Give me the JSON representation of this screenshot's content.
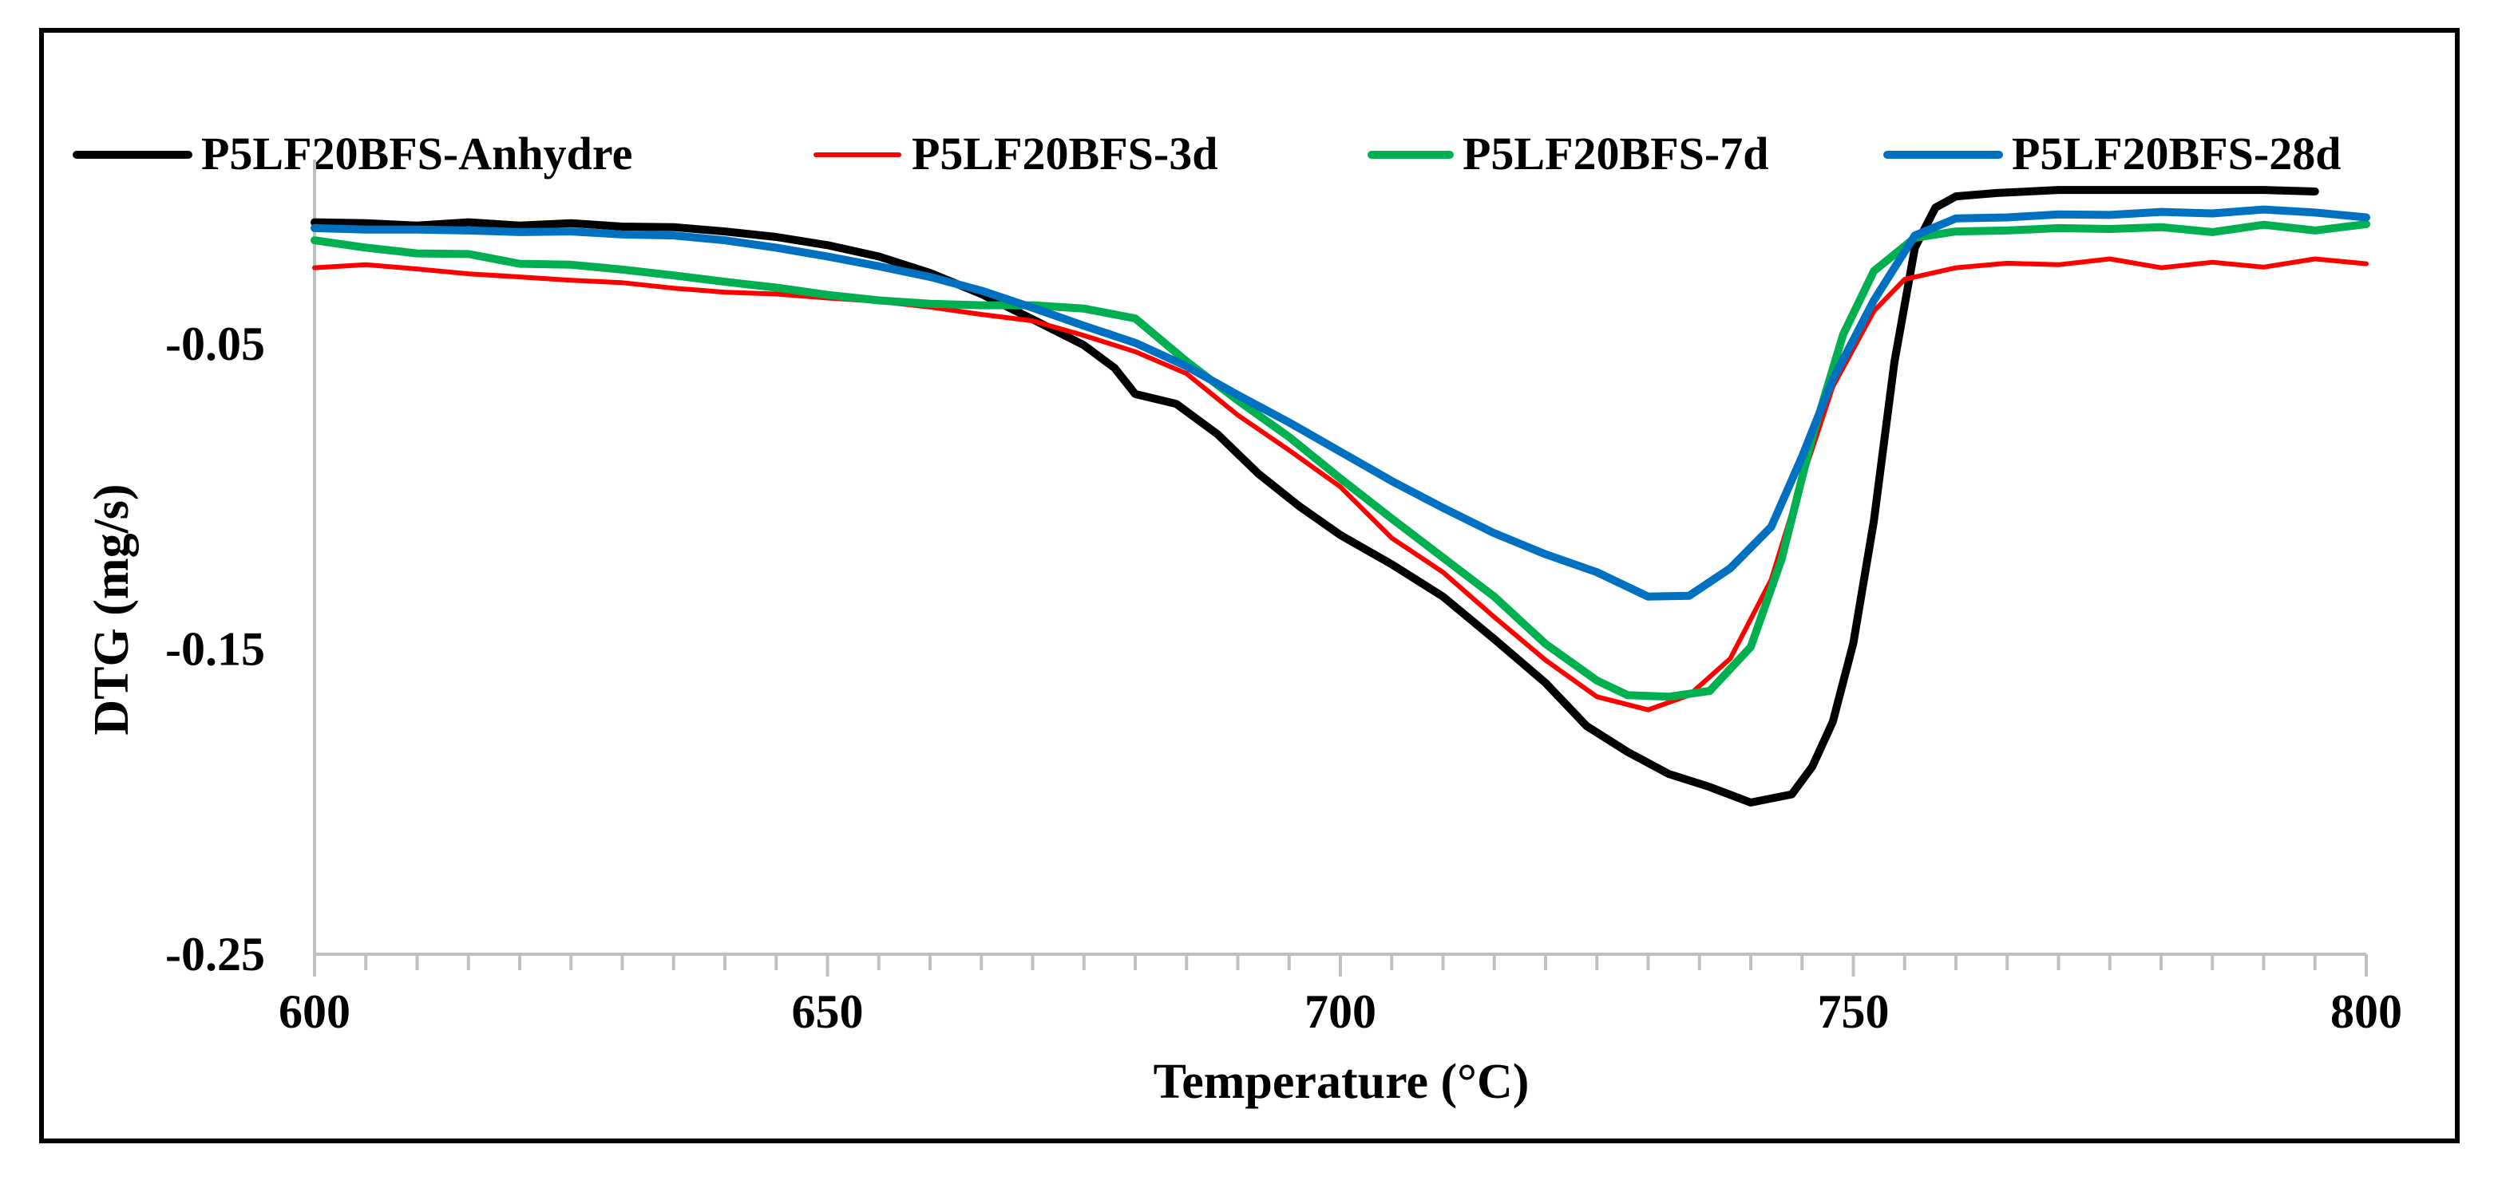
{
  "chart_data": {
    "type": "line",
    "title": "",
    "xlabel": "Temperature (°C)",
    "ylabel": "DTG (mg/s)",
    "xlim": [
      600,
      800
    ],
    "ylim": [
      -0.25,
      -0.0
    ],
    "x_ticks": [
      600,
      650,
      700,
      750,
      800
    ],
    "x_tick_labels": [
      "600",
      "650",
      "700",
      "750",
      "800"
    ],
    "y_ticks": [
      -0.05,
      -0.15,
      -0.25
    ],
    "y_tick_labels": [
      "-0.05",
      "-0.15",
      "-0.25"
    ],
    "grid": false,
    "legend_position": "top",
    "series": [
      {
        "name": "P5LF20BFS-Anhydre",
        "color": "#000000",
        "points": [
          [
            600,
            -0.0101
          ],
          [
            605,
            -0.0104
          ],
          [
            610,
            -0.0112
          ],
          [
            615,
            -0.0101
          ],
          [
            620,
            -0.0112
          ],
          [
            625,
            -0.0104
          ],
          [
            630,
            -0.0115
          ],
          [
            635,
            -0.0117
          ],
          [
            640,
            -0.0131
          ],
          [
            645,
            -0.0149
          ],
          [
            650,
            -0.0176
          ],
          [
            655,
            -0.0213
          ],
          [
            660,
            -0.0267
          ],
          [
            665,
            -0.0336
          ],
          [
            670,
            -0.0419
          ],
          [
            675,
            -0.0504
          ],
          [
            678,
            -0.0579
          ],
          [
            680,
            -0.0664
          ],
          [
            684,
            -0.0696
          ],
          [
            688,
            -0.0795
          ],
          [
            692,
            -0.0925
          ],
          [
            696,
            -0.1032
          ],
          [
            700,
            -0.1126
          ],
          [
            705,
            -0.1222
          ],
          [
            710,
            -0.1328
          ],
          [
            715,
            -0.1467
          ],
          [
            720,
            -0.1611
          ],
          [
            724,
            -0.1752
          ],
          [
            728,
            -0.1837
          ],
          [
            732,
            -0.1909
          ],
          [
            736,
            -0.1952
          ],
          [
            740,
            -0.2003
          ],
          [
            744,
            -0.1976
          ],
          [
            746,
            -0.1885
          ],
          [
            748,
            -0.1738
          ],
          [
            750,
            -0.148
          ],
          [
            752,
            -0.108
          ],
          [
            754,
            -0.056
          ],
          [
            756,
            -0.0184
          ],
          [
            758,
            -0.0053
          ],
          [
            760,
            -0.0016
          ],
          [
            764,
            -0.0005
          ],
          [
            770,
            0.0005
          ],
          [
            780,
            0.0005
          ],
          [
            790,
            0.0005
          ],
          [
            795,
            0.0
          ]
        ]
      },
      {
        "name": "P5LF20BFS-3d",
        "color": "#ff0000",
        "points": [
          [
            600,
            -0.025
          ],
          [
            605,
            -0.024
          ],
          [
            610,
            -0.0254
          ],
          [
            615,
            -0.027
          ],
          [
            620,
            -0.028
          ],
          [
            625,
            -0.0291
          ],
          [
            630,
            -0.0299
          ],
          [
            635,
            -0.0317
          ],
          [
            640,
            -0.033
          ],
          [
            645,
            -0.0336
          ],
          [
            650,
            -0.0349
          ],
          [
            655,
            -0.036
          ],
          [
            660,
            -0.0379
          ],
          [
            665,
            -0.0403
          ],
          [
            670,
            -0.0424
          ],
          [
            675,
            -0.0472
          ],
          [
            680,
            -0.0525
          ],
          [
            685,
            -0.0597
          ],
          [
            690,
            -0.0733
          ],
          [
            695,
            -0.0848
          ],
          [
            700,
            -0.0968
          ],
          [
            705,
            -0.1136
          ],
          [
            710,
            -0.1248
          ],
          [
            715,
            -0.1395
          ],
          [
            720,
            -0.1536
          ],
          [
            725,
            -0.1656
          ],
          [
            730,
            -0.1699
          ],
          [
            734,
            -0.1651
          ],
          [
            738,
            -0.1531
          ],
          [
            742,
            -0.1272
          ],
          [
            745,
            -0.0944
          ],
          [
            748,
            -0.064
          ],
          [
            752,
            -0.0392
          ],
          [
            755,
            -0.0288
          ],
          [
            760,
            -0.025
          ],
          [
            765,
            -0.0235
          ],
          [
            770,
            -0.024
          ],
          [
            775,
            -0.0221
          ],
          [
            780,
            -0.025
          ],
          [
            785,
            -0.0232
          ],
          [
            790,
            -0.0248
          ],
          [
            795,
            -0.0221
          ],
          [
            800,
            -0.0237
          ]
        ]
      },
      {
        "name": "P5LF20BFS-7d",
        "color": "#00b050",
        "points": [
          [
            600,
            -0.016
          ],
          [
            605,
            -0.0184
          ],
          [
            610,
            -0.0203
          ],
          [
            615,
            -0.0205
          ],
          [
            620,
            -0.0237
          ],
          [
            625,
            -0.024
          ],
          [
            630,
            -0.0256
          ],
          [
            635,
            -0.0275
          ],
          [
            640,
            -0.0296
          ],
          [
            645,
            -0.0315
          ],
          [
            650,
            -0.0339
          ],
          [
            655,
            -0.0357
          ],
          [
            660,
            -0.0368
          ],
          [
            665,
            -0.0373
          ],
          [
            670,
            -0.0373
          ],
          [
            675,
            -0.0384
          ],
          [
            680,
            -0.0416
          ],
          [
            685,
            -0.0557
          ],
          [
            690,
            -0.0685
          ],
          [
            695,
            -0.0805
          ],
          [
            700,
            -0.0941
          ],
          [
            705,
            -0.1072
          ],
          [
            710,
            -0.12
          ],
          [
            715,
            -0.1328
          ],
          [
            720,
            -0.1483
          ],
          [
            725,
            -0.1603
          ],
          [
            728,
            -0.1651
          ],
          [
            732,
            -0.1656
          ],
          [
            736,
            -0.1637
          ],
          [
            740,
            -0.1493
          ],
          [
            743,
            -0.1205
          ],
          [
            746,
            -0.0805
          ],
          [
            749,
            -0.0469
          ],
          [
            752,
            -0.0261
          ],
          [
            756,
            -0.0152
          ],
          [
            760,
            -0.0131
          ],
          [
            765,
            -0.0128
          ],
          [
            770,
            -0.012
          ],
          [
            775,
            -0.0123
          ],
          [
            780,
            -0.0117
          ],
          [
            785,
            -0.0133
          ],
          [
            790,
            -0.0109
          ],
          [
            795,
            -0.0128
          ],
          [
            800,
            -0.0107
          ]
        ]
      },
      {
        "name": "P5LF20BFS-28d",
        "color": "#0070c0",
        "points": [
          [
            600,
            -0.012
          ],
          [
            605,
            -0.0125
          ],
          [
            610,
            -0.0125
          ],
          [
            615,
            -0.0128
          ],
          [
            620,
            -0.0133
          ],
          [
            625,
            -0.0131
          ],
          [
            630,
            -0.0141
          ],
          [
            635,
            -0.0144
          ],
          [
            640,
            -0.016
          ],
          [
            645,
            -0.0184
          ],
          [
            650,
            -0.0213
          ],
          [
            655,
            -0.0245
          ],
          [
            660,
            -0.028
          ],
          [
            665,
            -0.0325
          ],
          [
            670,
            -0.0381
          ],
          [
            675,
            -0.044
          ],
          [
            680,
            -0.0496
          ],
          [
            685,
            -0.0573
          ],
          [
            690,
            -0.0667
          ],
          [
            695,
            -0.0757
          ],
          [
            700,
            -0.0853
          ],
          [
            705,
            -0.0949
          ],
          [
            710,
            -0.1037
          ],
          [
            715,
            -0.112
          ],
          [
            720,
            -0.1189
          ],
          [
            725,
            -0.1248
          ],
          [
            730,
            -0.1328
          ],
          [
            734,
            -0.1325
          ],
          [
            738,
            -0.1235
          ],
          [
            742,
            -0.1099
          ],
          [
            745,
            -0.0869
          ],
          [
            748,
            -0.0616
          ],
          [
            752,
            -0.0357
          ],
          [
            756,
            -0.0144
          ],
          [
            760,
            -0.0088
          ],
          [
            765,
            -0.0085
          ],
          [
            770,
            -0.0075
          ],
          [
            775,
            -0.0077
          ],
          [
            780,
            -0.0067
          ],
          [
            785,
            -0.0072
          ],
          [
            790,
            -0.0059
          ],
          [
            795,
            -0.0069
          ],
          [
            800,
            -0.0085
          ]
        ]
      }
    ]
  }
}
